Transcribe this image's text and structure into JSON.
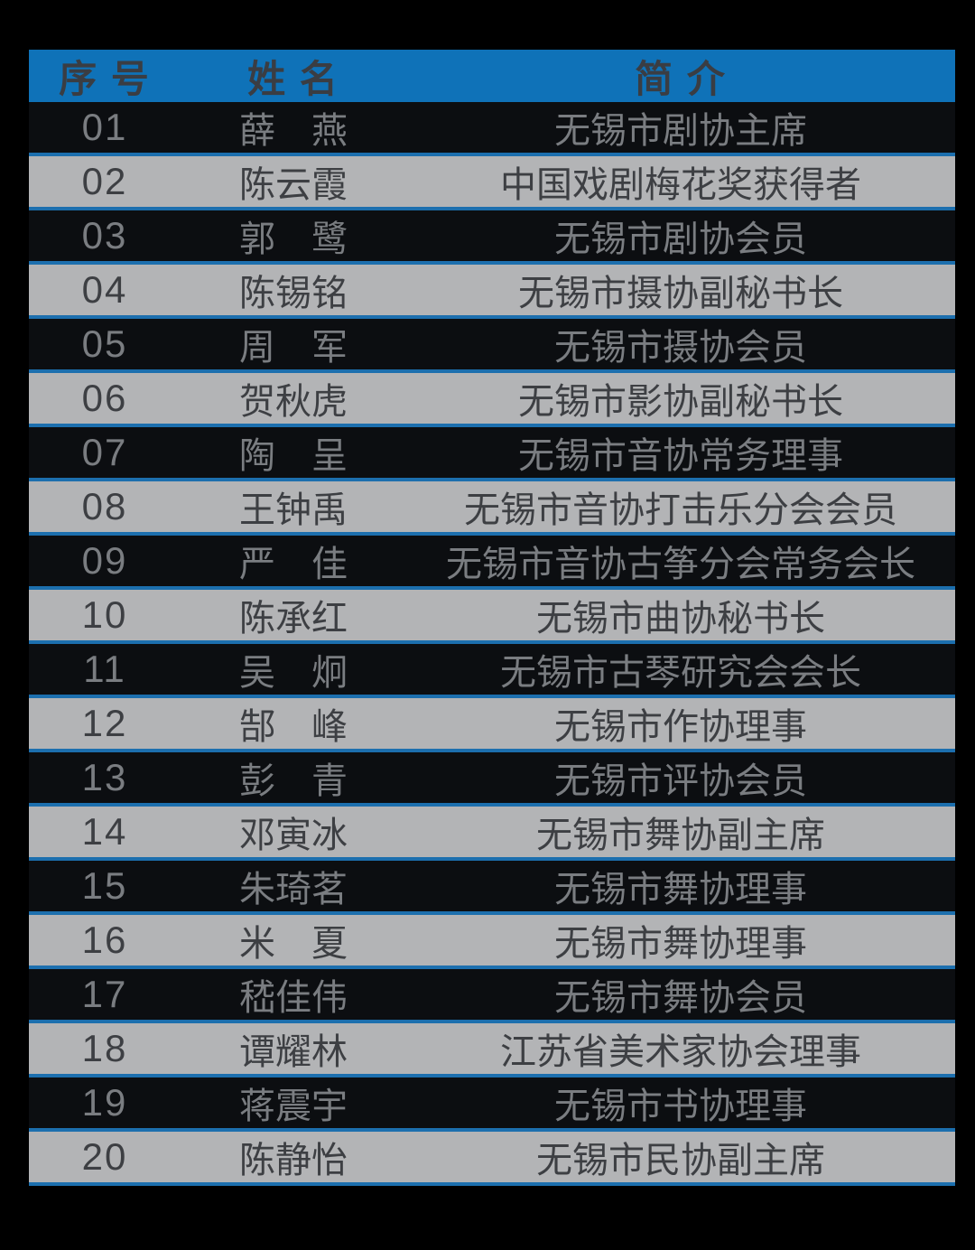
{
  "colors": {
    "page_background": "#000000",
    "header_bg": "#0f72b8",
    "separator_line": "#1c6fae",
    "light_row_bg": "#b3b4b6",
    "dark_row_bg": "#0c0e11",
    "header_text": "#3a3d43",
    "light_row_text": "#3d3f43",
    "dark_row_text": "#7a7d81"
  },
  "table": {
    "columns": [
      "序 号",
      "姓 名",
      "简 介"
    ],
    "rows": [
      {
        "no": "01",
        "name": "薛　燕",
        "brief": "无锡市剧协主席"
      },
      {
        "no": "02",
        "name": "陈云霞",
        "brief": "中国戏剧梅花奖获得者"
      },
      {
        "no": "03",
        "name": "郭　鹭",
        "brief": "无锡市剧协会员"
      },
      {
        "no": "04",
        "name": "陈锡铭",
        "brief": "无锡市摄协副秘书长"
      },
      {
        "no": "05",
        "name": "周　军",
        "brief": "无锡市摄协会员"
      },
      {
        "no": "06",
        "name": "贺秋虎",
        "brief": "无锡市影协副秘书长"
      },
      {
        "no": "07",
        "name": "陶　呈",
        "brief": "无锡市音协常务理事"
      },
      {
        "no": "08",
        "name": "王钟禹",
        "brief": "无锡市音协打击乐分会会员"
      },
      {
        "no": "09",
        "name": "严　佳",
        "brief": "无锡市音协古筝分会常务会长"
      },
      {
        "no": "10",
        "name": "陈承红",
        "brief": "无锡市曲协秘书长"
      },
      {
        "no": "11",
        "name": "吴　炯",
        "brief": "无锡市古琴研究会会长"
      },
      {
        "no": "12",
        "name": "郜　峰",
        "brief": "无锡市作协理事"
      },
      {
        "no": "13",
        "name": "彭　青",
        "brief": "无锡市评协会员"
      },
      {
        "no": "14",
        "name": "邓寅冰",
        "brief": "无锡市舞协副主席"
      },
      {
        "no": "15",
        "name": "朱琦茗",
        "brief": "无锡市舞协理事"
      },
      {
        "no": "16",
        "name": "米　夏",
        "brief": "无锡市舞协理事"
      },
      {
        "no": "17",
        "name": "嵇佳伟",
        "brief": "无锡市舞协会员"
      },
      {
        "no": "18",
        "name": "谭耀林",
        "brief": "江苏省美术家协会理事"
      },
      {
        "no": "19",
        "name": "蒋震宇",
        "brief": "无锡市书协理事"
      },
      {
        "no": "20",
        "name": "陈静怡",
        "brief": "无锡市民协副主席"
      }
    ]
  }
}
